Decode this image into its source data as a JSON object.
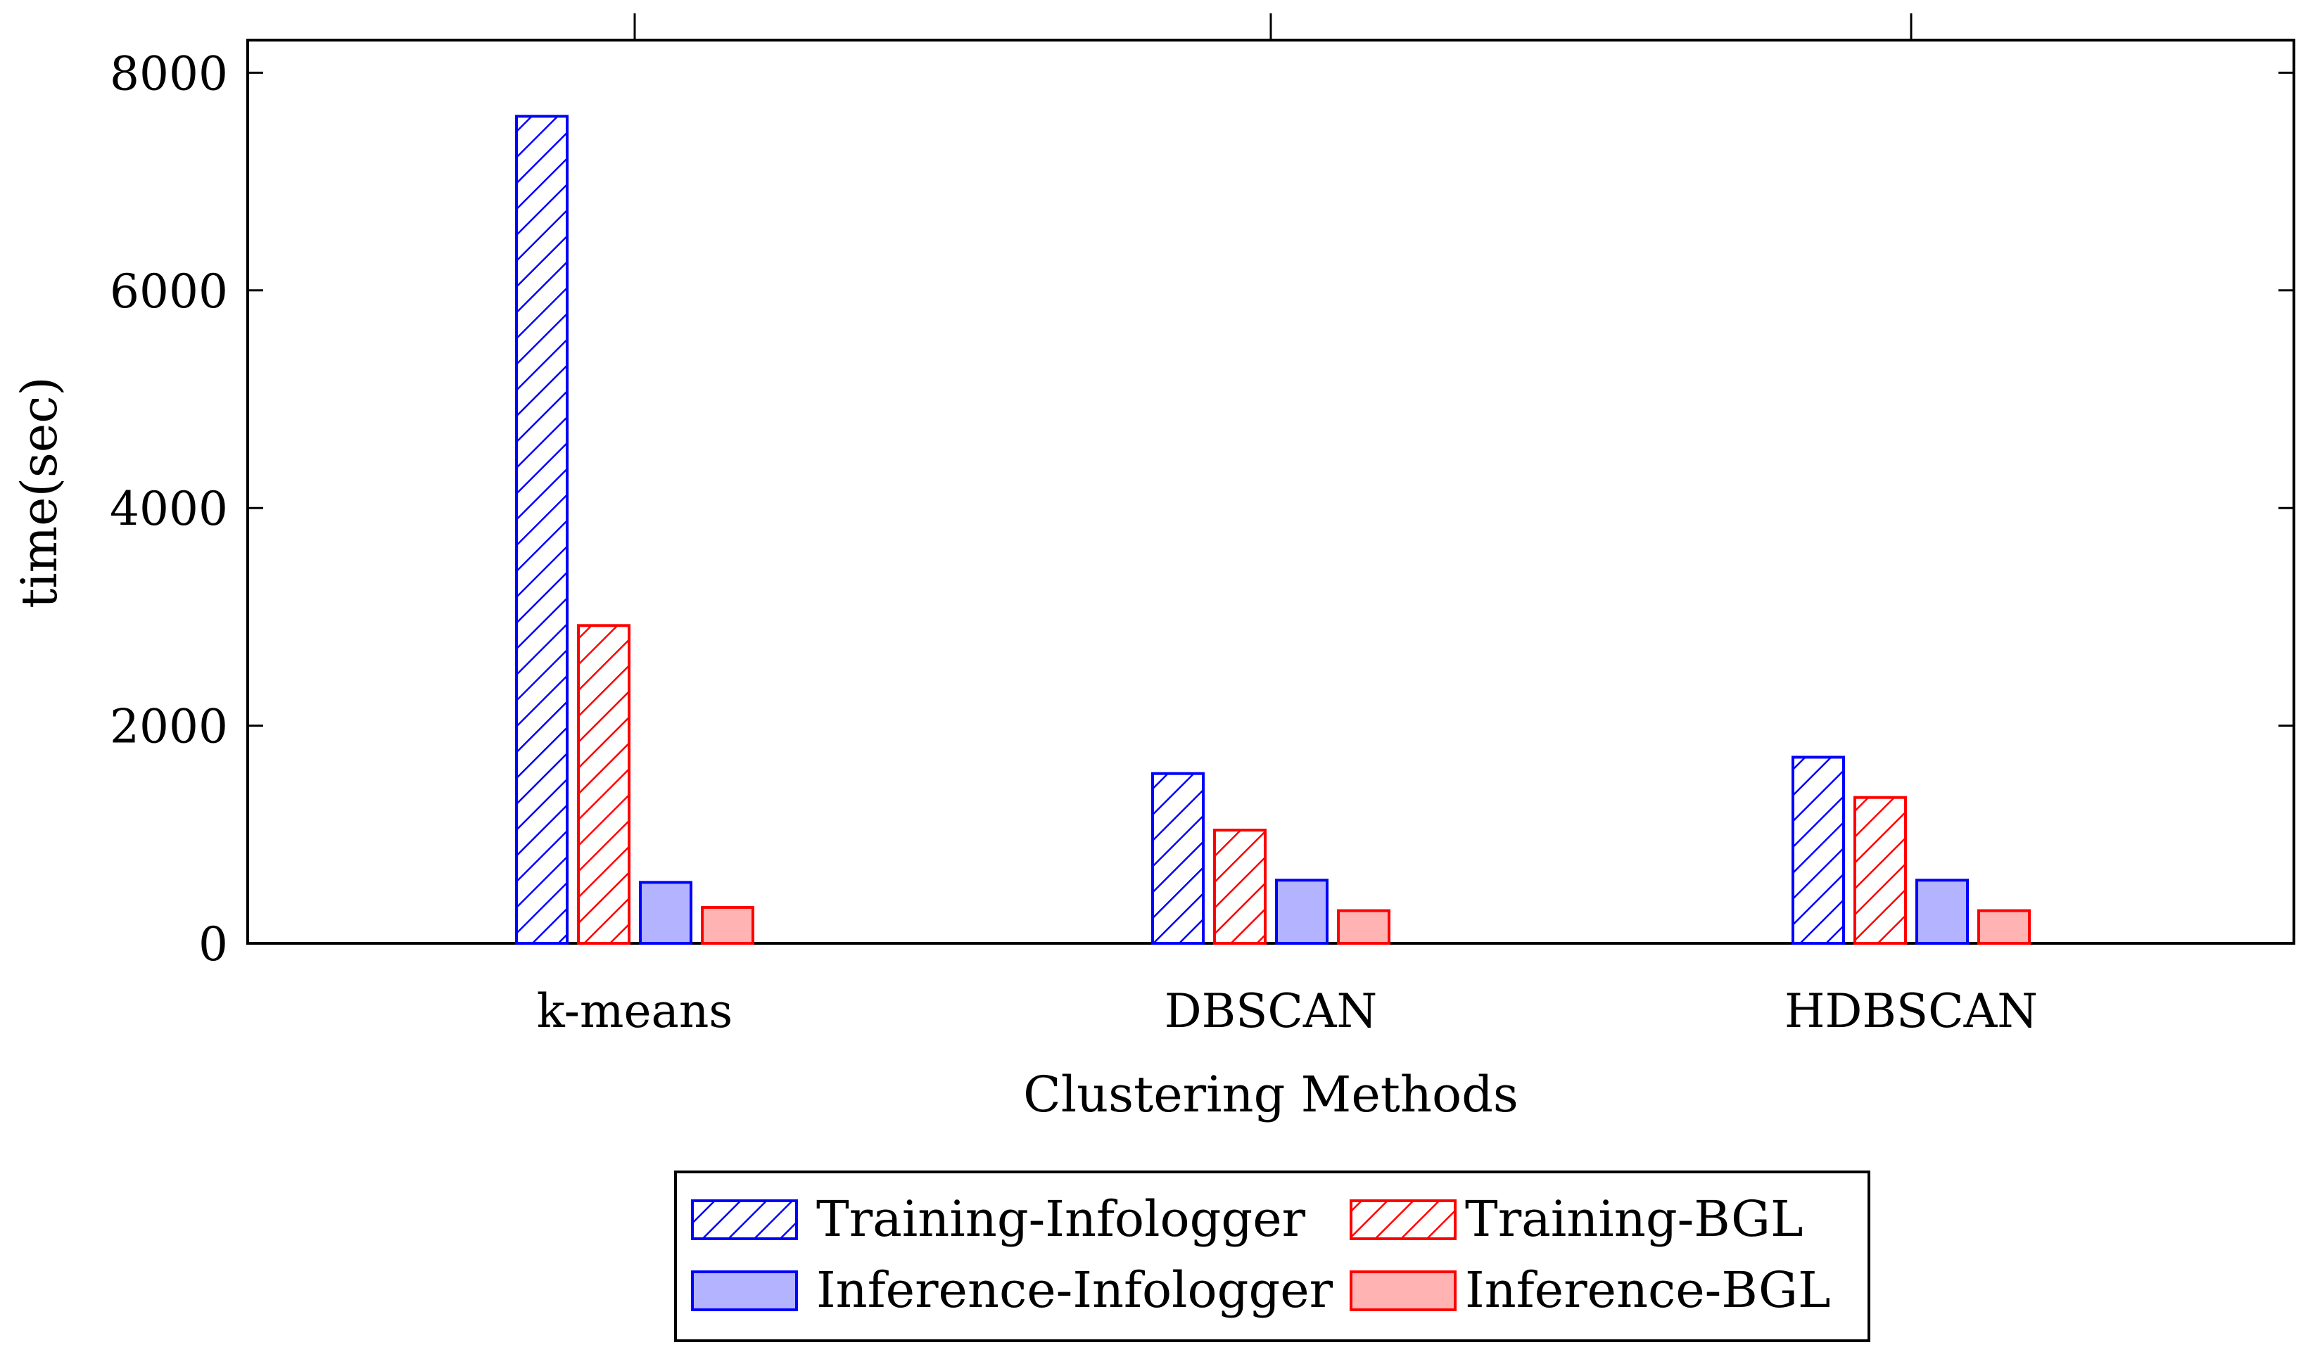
{
  "chart_data": {
    "type": "bar",
    "title": "",
    "xlabel": "Clustering Methods",
    "ylabel": "time(sec)",
    "ylim": [
      0,
      8300
    ],
    "yticks": [
      0,
      2000,
      4000,
      6000,
      8000
    ],
    "categories": [
      "k-means",
      "DBSCAN",
      "HDBSCAN"
    ],
    "series": [
      {
        "name": "Training-Infologger",
        "values": [
          7600,
          1560,
          1710
        ],
        "color": "#0000ff",
        "fill": "hatch"
      },
      {
        "name": "Training-BGL",
        "values": [
          2920,
          1040,
          1340
        ],
        "color": "#ff0000",
        "fill": "hatch"
      },
      {
        "name": "Inference-Infologger",
        "values": [
          560,
          580,
          580
        ],
        "color": "#0000ff",
        "fill": "#b3b3ff"
      },
      {
        "name": "Inference-BGL",
        "values": [
          330,
          300,
          300
        ],
        "color": "#ff0000",
        "fill": "#ffb3b3"
      }
    ],
    "grid": false,
    "legend_position": "bottom-center"
  }
}
